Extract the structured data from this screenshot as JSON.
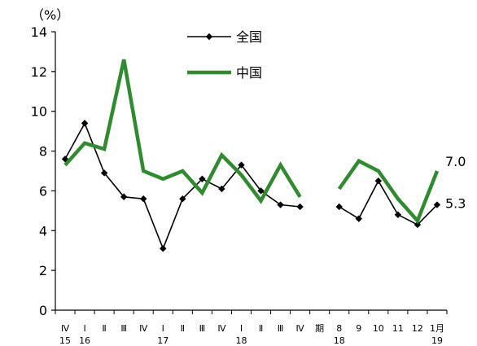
{
  "chart_data": {
    "type": "line",
    "unit_label": "（%）",
    "ylim": [
      0,
      14
    ],
    "yticks": [
      0,
      2,
      4,
      6,
      8,
      10,
      12,
      14
    ],
    "x_labels_top": [
      "Ⅳ",
      "Ⅰ",
      "Ⅱ",
      "Ⅲ",
      "Ⅳ",
      "Ⅰ",
      "Ⅱ",
      "Ⅲ",
      "Ⅳ",
      "Ⅰ",
      "Ⅱ",
      "Ⅲ",
      "Ⅳ",
      "期",
      "8",
      "9",
      "10",
      "11",
      "12",
      "1月"
    ],
    "x_labels_bottom": [
      {
        "text": "15",
        "index": 0
      },
      {
        "text": "16",
        "index": 1
      },
      {
        "text": "17",
        "index": 5
      },
      {
        "text": "18",
        "index": 9
      },
      {
        "text": "18",
        "index": 14
      },
      {
        "text": "19",
        "index": 19
      }
    ],
    "series": [
      {
        "name": "全国",
        "color": "#000000",
        "marker": "diamond",
        "segments": [
          {
            "x": [
              0,
              1,
              2,
              3,
              4,
              5,
              6,
              7,
              8,
              9,
              10,
              11,
              12
            ],
            "y": [
              7.6,
              9.4,
              6.9,
              5.7,
              5.6,
              3.1,
              5.6,
              6.6,
              6.1,
              7.3,
              6.0,
              5.3,
              5.2
            ]
          },
          {
            "x": [
              14,
              15,
              16,
              17,
              18,
              19
            ],
            "y": [
              5.2,
              4.6,
              6.5,
              4.8,
              4.3,
              5.3
            ]
          }
        ]
      },
      {
        "name": "中国",
        "color": "#2e8b2e",
        "marker": "none",
        "segments": [
          {
            "x": [
              0,
              1,
              2,
              3,
              4,
              5,
              6,
              7,
              8,
              9,
              10,
              11,
              12
            ],
            "y": [
              7.3,
              8.4,
              8.1,
              12.6,
              7.0,
              6.6,
              7.0,
              5.9,
              7.8,
              6.8,
              5.5,
              7.3,
              5.7
            ]
          },
          {
            "x": [
              14,
              15,
              16,
              17,
              18,
              19
            ],
            "y": [
              6.1,
              7.5,
              7.0,
              5.6,
              4.5,
              7.0
            ]
          }
        ]
      }
    ],
    "annotations": [
      {
        "text": "7.0",
        "series": "中国"
      },
      {
        "text": "5.3",
        "series": "全国"
      }
    ],
    "legend_placement": "top-center"
  }
}
